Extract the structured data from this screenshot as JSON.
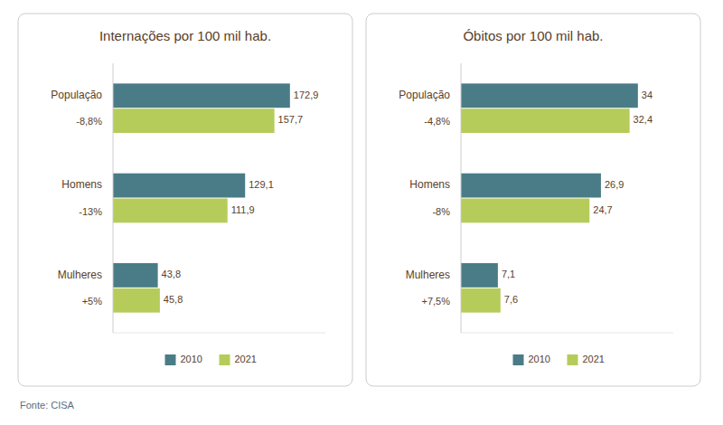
{
  "chart_data": [
    {
      "type": "bar",
      "orientation": "horizontal",
      "title": "Internações por 100 mil hab.",
      "categories": [
        "População",
        "Homens",
        "Mulheres"
      ],
      "annotations": [
        "-8,8%",
        "-13%",
        "+5%"
      ],
      "series": [
        {
          "name": "2010",
          "color": "#4a7c87",
          "values": [
            172.9,
            129.1,
            43.8
          ],
          "value_labels": [
            "172,9",
            "129,1",
            "43,8"
          ]
        },
        {
          "name": "2021",
          "color": "#b5cc5a",
          "values": [
            157.7,
            111.9,
            45.8
          ],
          "value_labels": [
            "157,7",
            "111,9",
            "45,8"
          ]
        }
      ],
      "xlim": [
        0,
        207.48
      ],
      "data_labels": true,
      "tick_labels": false,
      "grid": false,
      "legend": "bottom"
    },
    {
      "type": "bar",
      "orientation": "horizontal",
      "title": "Óbitos por 100 mil hab.",
      "categories": [
        "População",
        "Homens",
        "Mulheres"
      ],
      "annotations": [
        "-4,8%",
        "-8%",
        "+7,5%"
      ],
      "series": [
        {
          "name": "2010",
          "color": "#4a7c87",
          "values": [
            34.0,
            26.9,
            7.1
          ],
          "value_labels": [
            "34",
            "26,9",
            "7,1"
          ]
        },
        {
          "name": "2021",
          "color": "#b5cc5a",
          "values": [
            32.4,
            24.7,
            7.6
          ],
          "value_labels": [
            "32,4",
            "24,7",
            "7,6"
          ]
        }
      ],
      "xlim": [
        0,
        40.8
      ],
      "data_labels": true,
      "tick_labels": false,
      "grid": false,
      "legend": "bottom"
    }
  ],
  "annotations": [
    "Fonte: CISA"
  ]
}
